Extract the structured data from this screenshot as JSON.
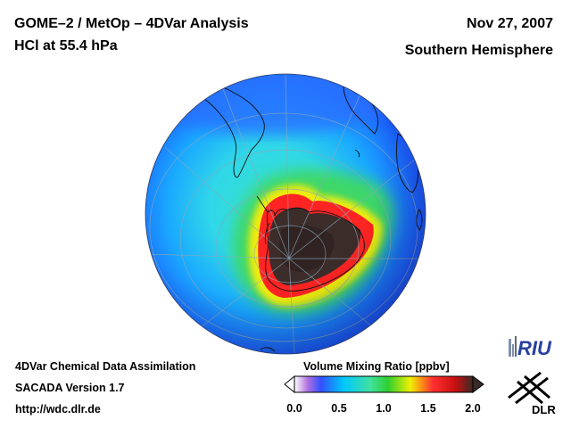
{
  "header": {
    "title_line1": "GOME–2 / MetOp – 4DVar Analysis",
    "title_line2": "HCl at 55.4 hPa",
    "date": "Nov 27, 2007",
    "region": "Southern Hemisphere"
  },
  "footer": {
    "line1": "4DVar Chemical Data Assimilation",
    "line2": "SACADA Version 1.7",
    "line3": "http://wdc.dlr.de"
  },
  "colorbar": {
    "title": "Volume Mixing Ratio [ppbv]",
    "min": 0.0,
    "max": 2.0,
    "ticks": [
      "0.0",
      "0.5",
      "1.0",
      "1.5",
      "2.0"
    ],
    "stops": [
      {
        "v": 0.0,
        "c": "#ffffff"
      },
      {
        "v": 0.15,
        "c": "#b070e0"
      },
      {
        "v": 0.3,
        "c": "#3050ff"
      },
      {
        "v": 0.55,
        "c": "#00c8ff"
      },
      {
        "v": 0.85,
        "c": "#40e0a0"
      },
      {
        "v": 1.05,
        "c": "#30d030"
      },
      {
        "v": 1.3,
        "c": "#f0f000"
      },
      {
        "v": 1.55,
        "c": "#ff3030"
      },
      {
        "v": 1.8,
        "c": "#c81010"
      },
      {
        "v": 2.0,
        "c": "#3a2a28"
      }
    ]
  },
  "logos": {
    "riu": "RIU",
    "dlr": "DLR"
  },
  "colors": {
    "ocean_blue": "#2050ff",
    "cyan": "#18c8ff",
    "green": "#30d040",
    "yellow": "#f0f000",
    "red": "#ff2020",
    "dark": "#3c2c2a"
  }
}
